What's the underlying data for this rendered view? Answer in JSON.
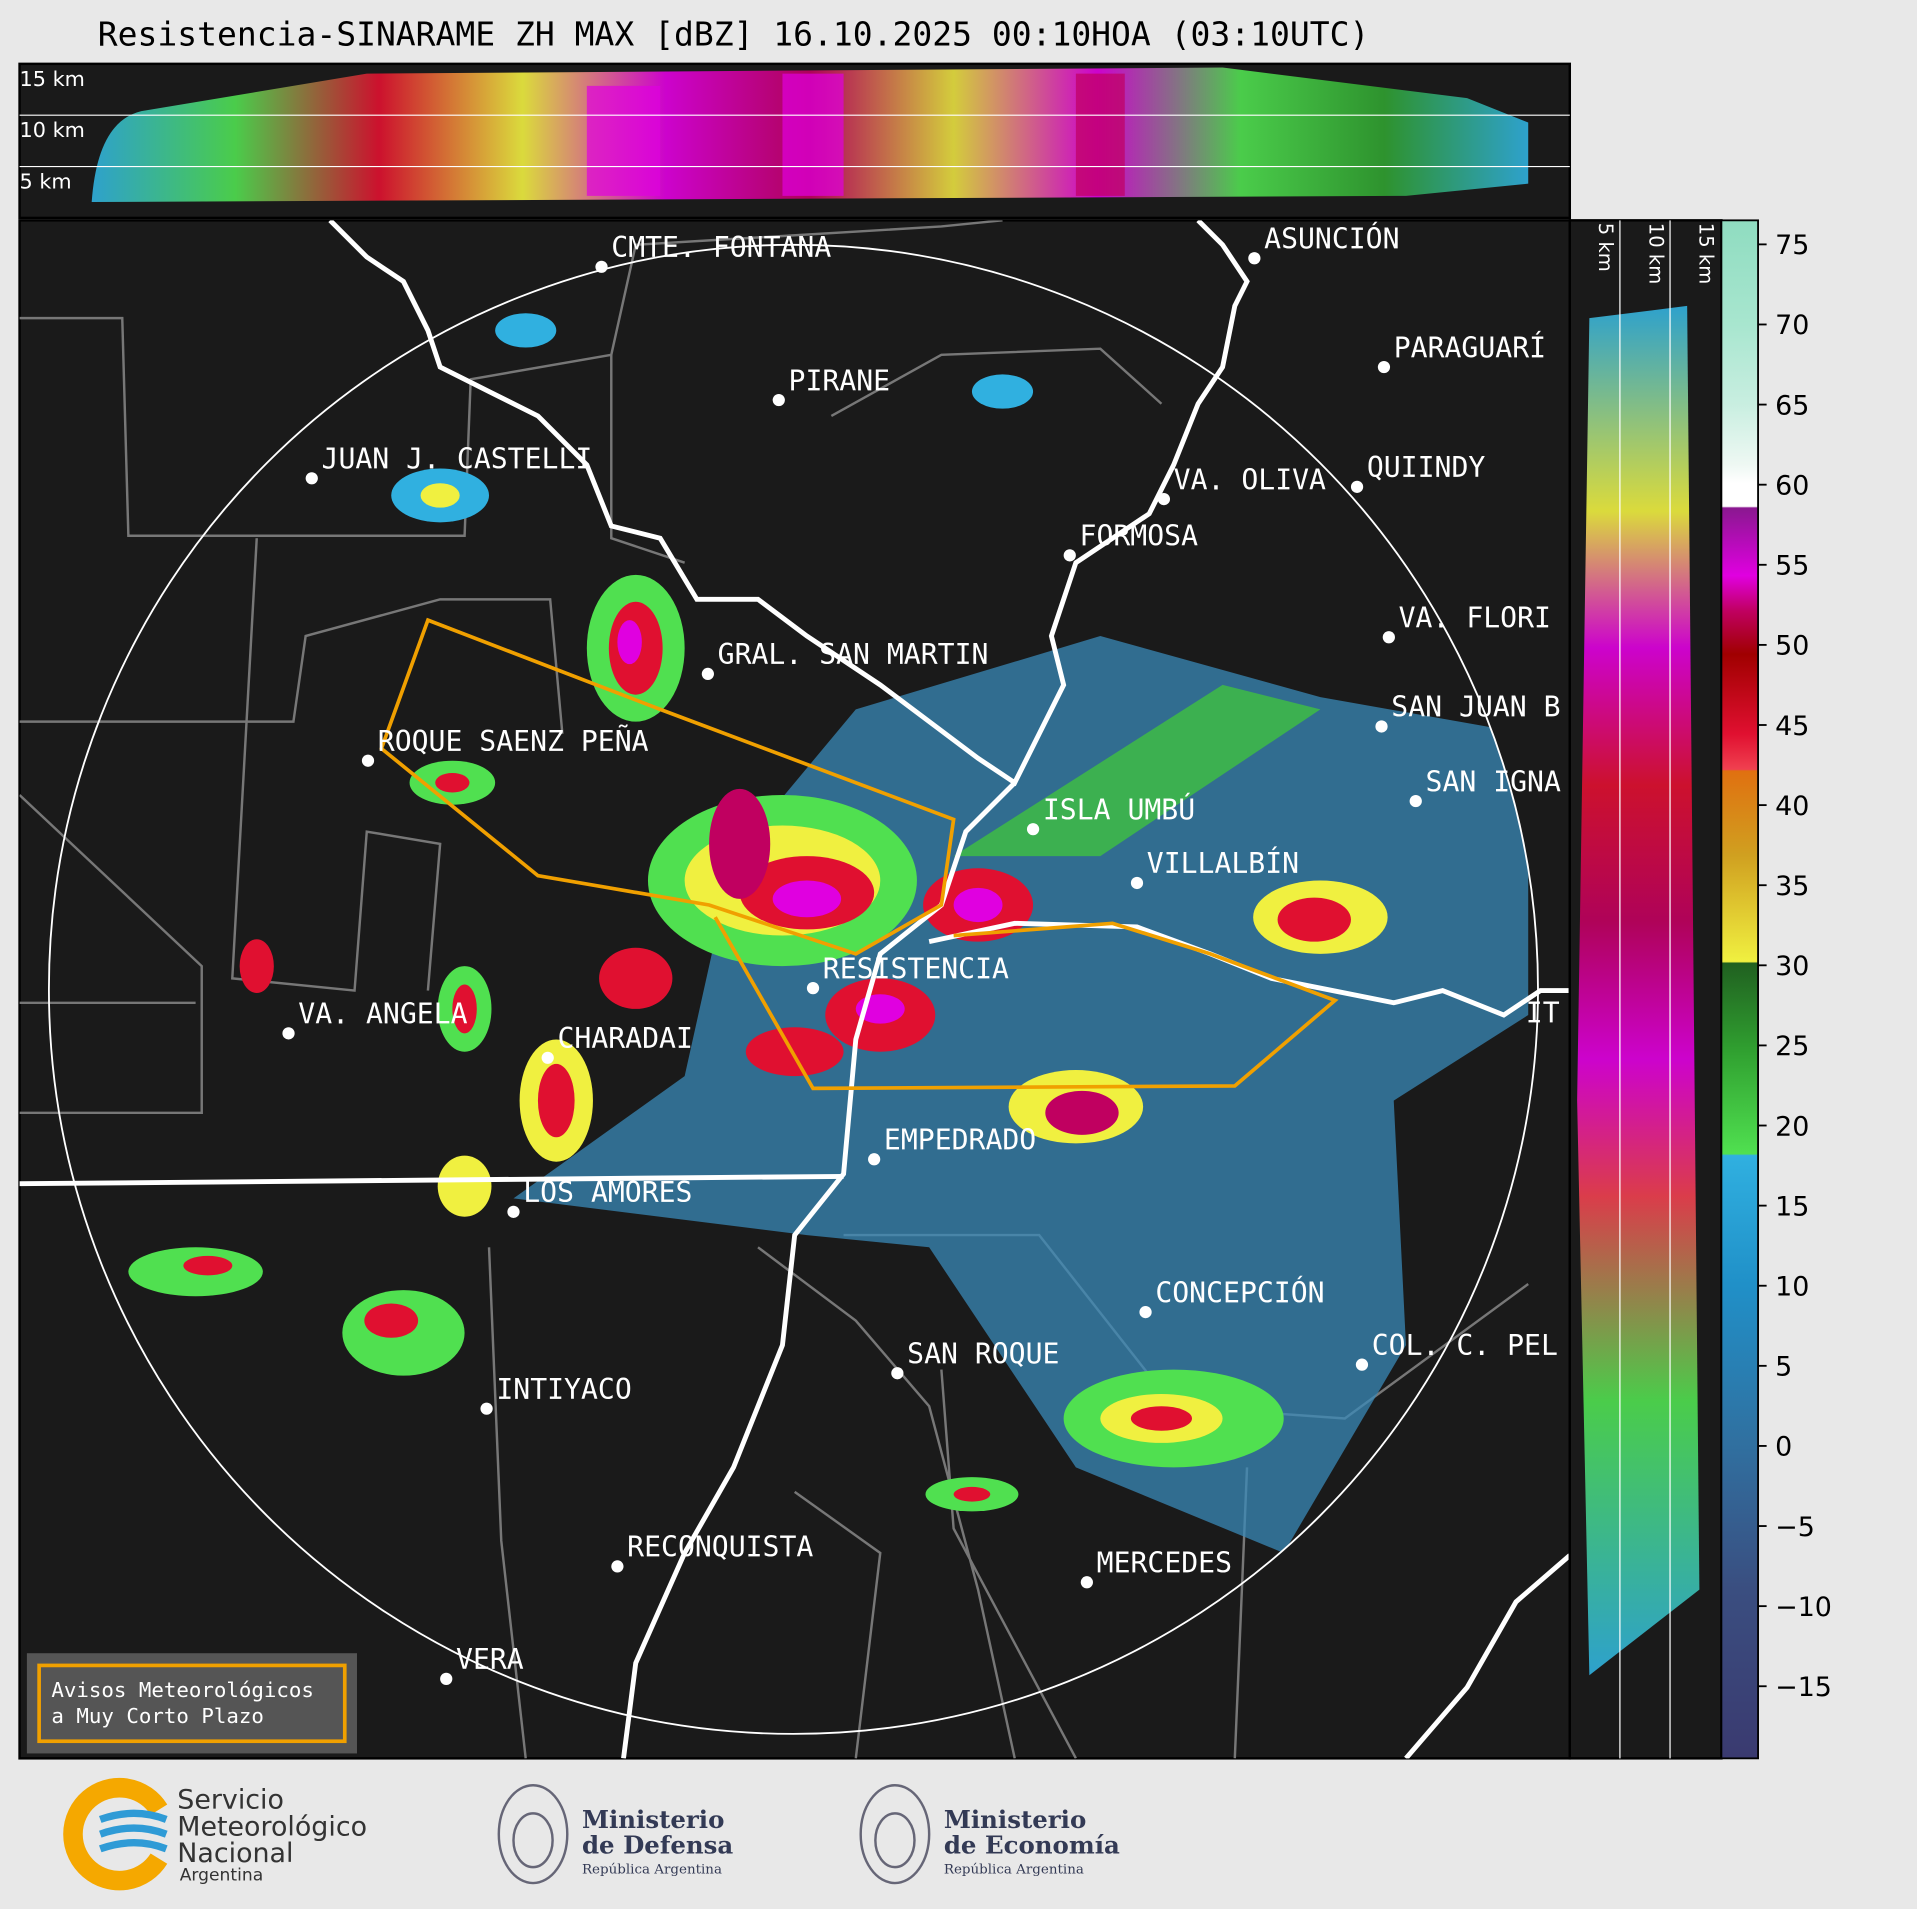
{
  "title": "Resistencia-SINARAME ZH MAX [dBZ] 16.10.2025 00:10HOA (03:10UTC)",
  "top_panel": {
    "height_labels": [
      "15 km",
      "10 km",
      "5 km"
    ]
  },
  "side_panel": {
    "height_labels": [
      "5 km",
      "10 km",
      "15 km"
    ]
  },
  "map": {
    "places": [
      "CMTE. FONTANA",
      "PIRANE",
      "JUAN J. CASTELLI",
      "ASUNCIÓN",
      "PARAGUARÍ",
      "VA. OLIVA",
      "QUIINDY",
      "FORMOSA",
      "VA. FLORI",
      "GRAL. SAN MARTIN",
      "SAN JUAN B",
      "ROQUE SAENZ PEÑA",
      "SAN IGNA",
      "ISLA UMBÚ",
      "VILLALBÍN",
      "RESISTENCIA",
      "VA. ANGELA",
      "CHARADAI",
      "IT",
      "EMPEDRADO",
      "LOS AMORES",
      "CONCEPCIÓN",
      "COL. C. PEL",
      "SAN ROQUE",
      "INTIYACO",
      "RECONQUISTA",
      "MERCEDES",
      "VERA"
    ]
  },
  "colorbar": {
    "ylim": [
      -19.5,
      76.5
    ],
    "ticks": [
      75,
      70,
      65,
      60,
      55,
      50,
      45,
      40,
      35,
      30,
      25,
      20,
      15,
      10,
      5,
      0,
      {
        "value": -5,
        "label": "−5"
      },
      {
        "value": -10,
        "label": "−10"
      },
      {
        "value": -15,
        "label": "−15"
      }
    ]
  },
  "warning_box": {
    "lines": [
      "Avisos Meteorológicos",
      "a Muy Corto Plazo"
    ]
  },
  "logos": [
    {
      "lines": [
        "Servicio",
        "Meteorológico",
        "Nacional",
        "Argentina"
      ]
    },
    {
      "lines": [
        "Ministerio",
        "de Defensa",
        "República Argentina"
      ]
    },
    {
      "lines": [
        "Ministerio",
        "de Economía",
        "República Argentina"
      ]
    }
  ]
}
